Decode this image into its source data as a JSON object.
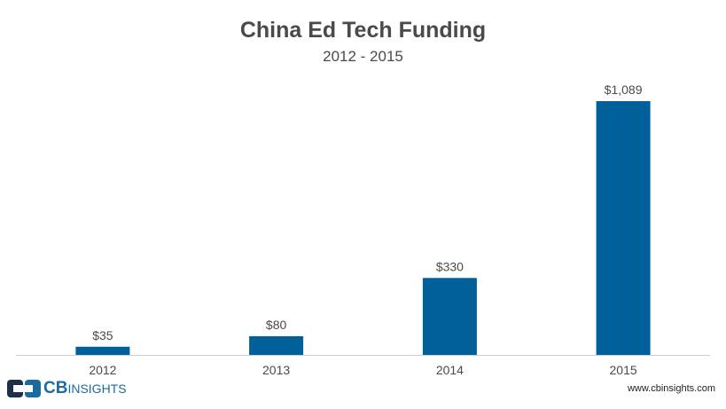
{
  "logo": {
    "brand_bold": "CB",
    "brand_light": "INSIGHTS"
  },
  "footer": {
    "url": "www.cbinsights.com"
  },
  "chart_data": {
    "type": "bar",
    "title": "China Ed Tech Funding",
    "subtitle": "2012 - 2015",
    "categories": [
      "2012",
      "2013",
      "2014",
      "2015"
    ],
    "values": [
      35,
      80,
      330,
      1089
    ],
    "data_labels": [
      "$35",
      "$80",
      "$330",
      "$1,089"
    ],
    "xlabel": "",
    "ylabel": "",
    "ylim": [
      0,
      1089
    ],
    "grid": false,
    "legend": "none",
    "bar_color": "#00619a",
    "axis_color": "#cccccc",
    "text_color": "#4a4a4a"
  }
}
